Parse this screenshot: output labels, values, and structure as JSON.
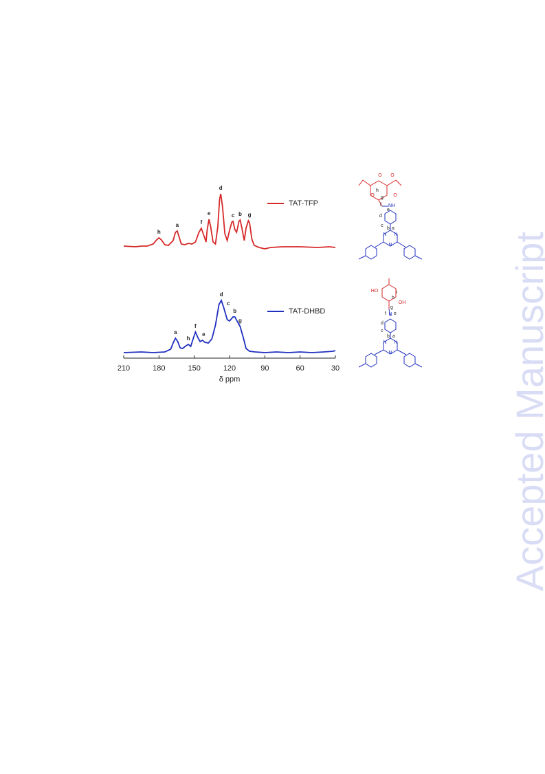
{
  "watermark": "Accepted Manuscript",
  "chart_data": [
    {
      "type": "line",
      "xlim": [
        210,
        30
      ],
      "ylim": [
        -10,
        90
      ],
      "legend": "upper right",
      "series": [
        {
          "name": "TAT-TFP",
          "color": "#d62828",
          "x": [
            210,
            200,
            195,
            190,
            185,
            182,
            180,
            178,
            175,
            172,
            168,
            166,
            164.5,
            163,
            161,
            158,
            155,
            152,
            149,
            146,
            144,
            142,
            140,
            139,
            137.5,
            136,
            134,
            132,
            130,
            128.5,
            127.5,
            126,
            124,
            122,
            120,
            118,
            117,
            115.5,
            114,
            112,
            111,
            109.5,
            107.5,
            106,
            104,
            103,
            101,
            99,
            95,
            90,
            85,
            75,
            60,
            45,
            35,
            30
          ],
          "values": [
            2,
            1,
            2,
            2,
            5,
            11,
            14,
            11,
            4,
            3,
            10,
            22,
            24,
            16,
            5,
            4,
            6,
            5,
            8,
            22,
            28,
            18,
            8,
            26,
            41,
            30,
            8,
            5,
            30,
            70,
            78,
            60,
            20,
            10,
            25,
            37,
            38,
            26,
            22,
            38,
            40,
            28,
            10,
            28,
            39,
            36,
            12,
            3,
            0,
            -2,
            0,
            1,
            1,
            0,
            1,
            0
          ]
        }
      ],
      "annotations": [
        {
          "text": "h",
          "x": 180,
          "y": 14
        },
        {
          "text": "a",
          "x": 164.5,
          "y": 24
        },
        {
          "text": "f",
          "x": 144,
          "y": 28
        },
        {
          "text": "e",
          "x": 137.5,
          "y": 41
        },
        {
          "text": "d",
          "x": 127.5,
          "y": 78
        },
        {
          "text": "c",
          "x": 117,
          "y": 38
        },
        {
          "text": "b",
          "x": 111,
          "y": 40
        },
        {
          "text": "g",
          "x": 103,
          "y": 39
        }
      ]
    },
    {
      "type": "line",
      "xlim": [
        210,
        30
      ],
      "ylim": [
        -8,
        86
      ],
      "xticks": [
        210,
        180,
        150,
        120,
        90,
        60,
        30
      ],
      "x_label": "δ ppm",
      "legend": "upper right",
      "series": [
        {
          "name": "TAT-DHBD",
          "color": "#1f2fbf",
          "x": [
            210,
            195,
            185,
            175,
            170,
            168,
            166,
            164,
            162,
            160,
            157,
            155,
            153,
            151,
            149,
            147,
            145,
            143,
            141,
            138,
            135,
            132,
            129,
            127,
            125,
            122,
            120,
            117,
            115.5,
            113,
            111,
            108,
            106,
            103,
            98,
            90,
            80,
            70,
            60,
            50,
            40,
            32,
            30
          ],
          "values": [
            0,
            1,
            0,
            1,
            5,
            14,
            21,
            16,
            7,
            6,
            10,
            12,
            9,
            20,
            30,
            22,
            16,
            18,
            15,
            14,
            20,
            40,
            70,
            76,
            66,
            48,
            46,
            52,
            52,
            44,
            38,
            20,
            6,
            2,
            1,
            0,
            1,
            0,
            1,
            0,
            1,
            2,
            3
          ]
        }
      ],
      "annotations": [
        {
          "text": "a",
          "x": 166,
          "y": 21
        },
        {
          "text": "h",
          "x": 155,
          "y": 12
        },
        {
          "text": "f",
          "x": 149,
          "y": 30
        },
        {
          "text": "e",
          "x": 142,
          "y": 18
        },
        {
          "text": "d",
          "x": 127,
          "y": 76
        },
        {
          "text": "c",
          "x": 121,
          "y": 63
        },
        {
          "text": "b",
          "x": 115.5,
          "y": 52
        },
        {
          "text": "g",
          "x": 111,
          "y": 38
        }
      ]
    }
  ],
  "structures": [
    {
      "labels": [
        "O",
        "O",
        "O",
        "O",
        "h",
        "g",
        "f",
        "NH",
        "e",
        "d",
        "c",
        "b",
        "a",
        "N",
        "N",
        "N"
      ]
    },
    {
      "labels": [
        "HO",
        "OH",
        "i",
        "h",
        "g",
        "f",
        "N",
        "e",
        "d",
        "c",
        "b",
        "a",
        "N",
        "N",
        "N"
      ]
    }
  ]
}
